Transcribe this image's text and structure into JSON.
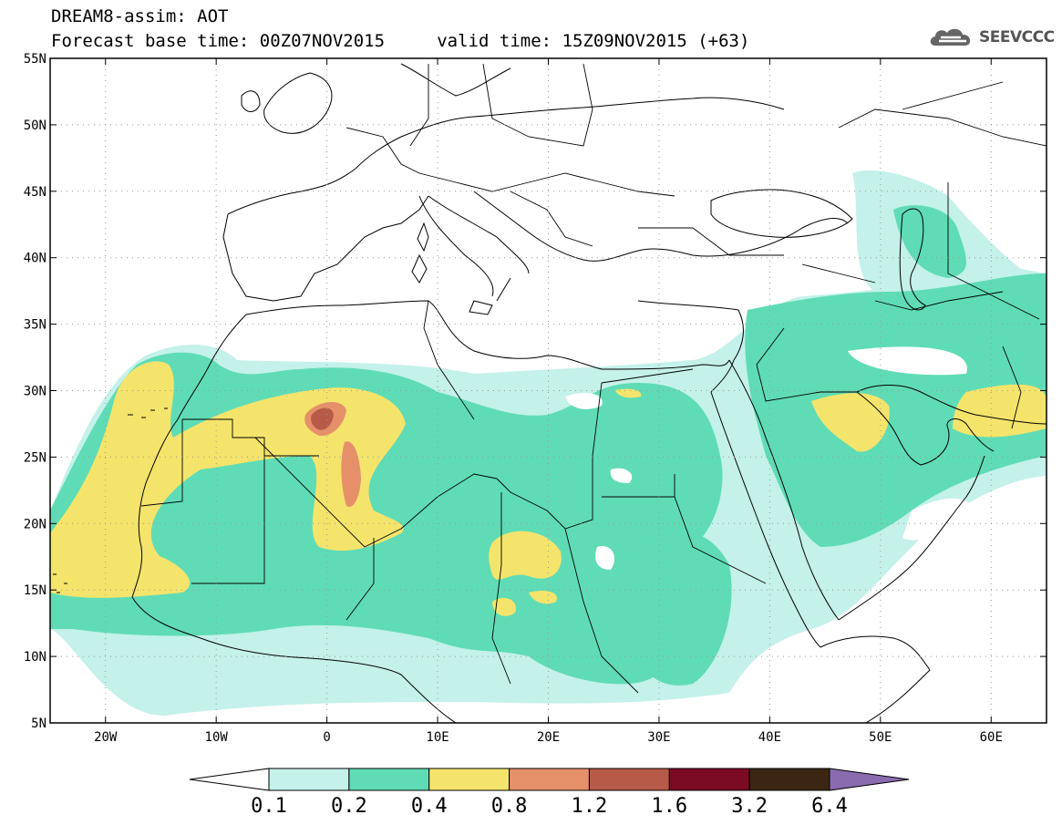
{
  "header": {
    "title_line1": "DREAM8-assim: AOT",
    "title_line2": "Forecast base time: 00Z07NOV2015     valid time: 15Z09NOV2015 (+63)",
    "logo_text": "SEEVCCC",
    "logo_icon": "cloud-logo-icon"
  },
  "map": {
    "lon_range": [
      -25,
      65
    ],
    "lat_range": [
      5,
      55
    ],
    "lat_ticks": [
      {
        "value": 55,
        "label": "55N"
      },
      {
        "value": 50,
        "label": "50N"
      },
      {
        "value": 45,
        "label": "45N"
      },
      {
        "value": 40,
        "label": "40N"
      },
      {
        "value": 35,
        "label": "35N"
      },
      {
        "value": 30,
        "label": "30N"
      },
      {
        "value": 25,
        "label": "25N"
      },
      {
        "value": 20,
        "label": "20N"
      },
      {
        "value": 15,
        "label": "15N"
      },
      {
        "value": 10,
        "label": "10N"
      },
      {
        "value": 5,
        "label": "5N"
      }
    ],
    "lon_ticks": [
      {
        "value": -20,
        "label": "20W"
      },
      {
        "value": -10,
        "label": "10W"
      },
      {
        "value": 0,
        "label": "0"
      },
      {
        "value": 10,
        "label": "10E"
      },
      {
        "value": 20,
        "label": "20E"
      },
      {
        "value": 30,
        "label": "30E"
      },
      {
        "value": 40,
        "label": "40E"
      },
      {
        "value": 50,
        "label": "50E"
      },
      {
        "value": 60,
        "label": "60E"
      }
    ],
    "gridlines": "dotted"
  },
  "colorbar": {
    "levels": [
      "0.1",
      "0.2",
      "0.4",
      "0.8",
      "1.2",
      "1.6",
      "3.2",
      "6.4"
    ],
    "colors": [
      "#ffffff",
      "#c4f1ea",
      "#5fdcb5",
      "#f5e46c",
      "#e6906a",
      "#b75a48",
      "#7b0a24",
      "#3b2614",
      "#8a6bb0"
    ]
  },
  "aot_colors": {
    "lightest": "#c4f1ea",
    "green": "#5fdcb5",
    "yellow": "#f5e46c",
    "orange": "#e6906a",
    "red": "#b75a48"
  }
}
